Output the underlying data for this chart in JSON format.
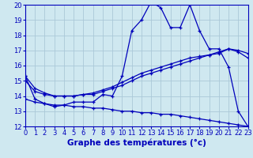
{
  "xlabel": "Graphe des températures (°c)",
  "ylabel": "",
  "background_color": "#cfe8f0",
  "grid_color": "#aac8d8",
  "line_color": "#0000bb",
  "ylim": [
    12,
    20
  ],
  "xlim": [
    0,
    23
  ],
  "yticks": [
    12,
    13,
    14,
    15,
    16,
    17,
    18,
    19,
    20
  ],
  "xticks": [
    0,
    1,
    2,
    3,
    4,
    5,
    6,
    7,
    8,
    9,
    10,
    11,
    12,
    13,
    14,
    15,
    16,
    17,
    18,
    19,
    20,
    21,
    22,
    23
  ],
  "series": {
    "temp": [
      15.3,
      13.8,
      13.5,
      13.3,
      13.4,
      13.6,
      13.6,
      13.6,
      14.1,
      14.0,
      15.3,
      18.3,
      19.0,
      20.2,
      19.8,
      18.5,
      18.5,
      20.0,
      18.3,
      17.1,
      17.1,
      15.9,
      13.0,
      12.0
    ],
    "min": [
      13.8,
      13.6,
      13.5,
      13.4,
      13.4,
      13.3,
      13.3,
      13.2,
      13.2,
      13.1,
      13.0,
      13.0,
      12.9,
      12.9,
      12.8,
      12.8,
      12.7,
      12.6,
      12.5,
      12.4,
      12.3,
      12.2,
      12.1,
      12.0
    ],
    "avg1": [
      15.0,
      14.3,
      14.1,
      14.0,
      14.0,
      14.0,
      14.1,
      14.1,
      14.3,
      14.5,
      14.7,
      15.0,
      15.3,
      15.5,
      15.7,
      15.9,
      16.1,
      16.3,
      16.5,
      16.7,
      16.9,
      17.1,
      17.0,
      16.8
    ],
    "avg2": [
      15.3,
      14.5,
      14.2,
      14.0,
      14.0,
      14.0,
      14.1,
      14.2,
      14.4,
      14.6,
      14.9,
      15.2,
      15.5,
      15.7,
      15.9,
      16.1,
      16.3,
      16.5,
      16.6,
      16.7,
      16.8,
      17.1,
      16.9,
      16.5
    ]
  },
  "title_fontsize": 7,
  "label_fontsize": 7.5,
  "tick_fontsize": 6.0
}
